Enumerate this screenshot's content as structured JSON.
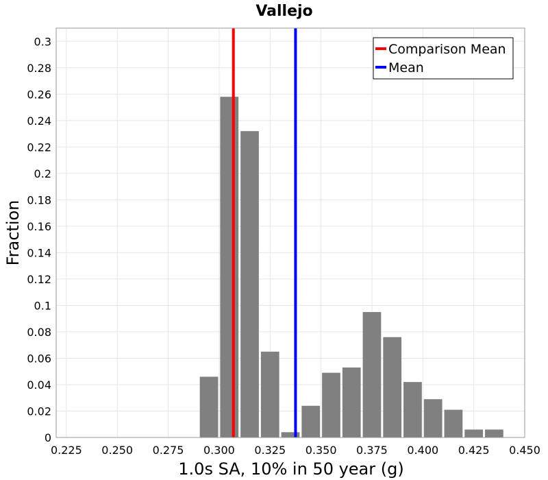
{
  "chart_data": {
    "type": "bar",
    "title": "Vallejo",
    "xlabel": "1.0s SA, 10% in 50 year (g)",
    "ylabel": "Fraction",
    "xlim": [
      0.22,
      0.45
    ],
    "ylim": [
      0,
      0.31
    ],
    "x_ticks": [
      "0.225",
      "0.250",
      "0.275",
      "0.300",
      "0.325",
      "0.350",
      "0.375",
      "0.400",
      "0.425",
      "0.450"
    ],
    "y_ticks": [
      "0",
      "0.02",
      "0.04",
      "0.06",
      "0.08",
      "0.1",
      "0.12",
      "0.14",
      "0.16",
      "0.18",
      "0.2",
      "0.22",
      "0.24",
      "0.26",
      "0.28",
      "0.3"
    ],
    "bin_width": 0.01,
    "bins": [
      {
        "x": 0.295,
        "value": 0.046
      },
      {
        "x": 0.305,
        "value": 0.258
      },
      {
        "x": 0.315,
        "value": 0.232
      },
      {
        "x": 0.325,
        "value": 0.065
      },
      {
        "x": 0.335,
        "value": 0.004
      },
      {
        "x": 0.345,
        "value": 0.024
      },
      {
        "x": 0.355,
        "value": 0.049
      },
      {
        "x": 0.365,
        "value": 0.053
      },
      {
        "x": 0.375,
        "value": 0.095
      },
      {
        "x": 0.385,
        "value": 0.076
      },
      {
        "x": 0.395,
        "value": 0.042
      },
      {
        "x": 0.405,
        "value": 0.029
      },
      {
        "x": 0.415,
        "value": 0.021
      },
      {
        "x": 0.425,
        "value": 0.006
      },
      {
        "x": 0.435,
        "value": 0.006
      }
    ],
    "bar_color": "#808080",
    "lines": [
      {
        "name": "Comparison Mean",
        "x": 0.307,
        "color": "#ff0000"
      },
      {
        "name": "Mean",
        "x": 0.3375,
        "color": "#0000ff"
      }
    ],
    "legend": {
      "position": "top-right"
    },
    "grid": true
  }
}
